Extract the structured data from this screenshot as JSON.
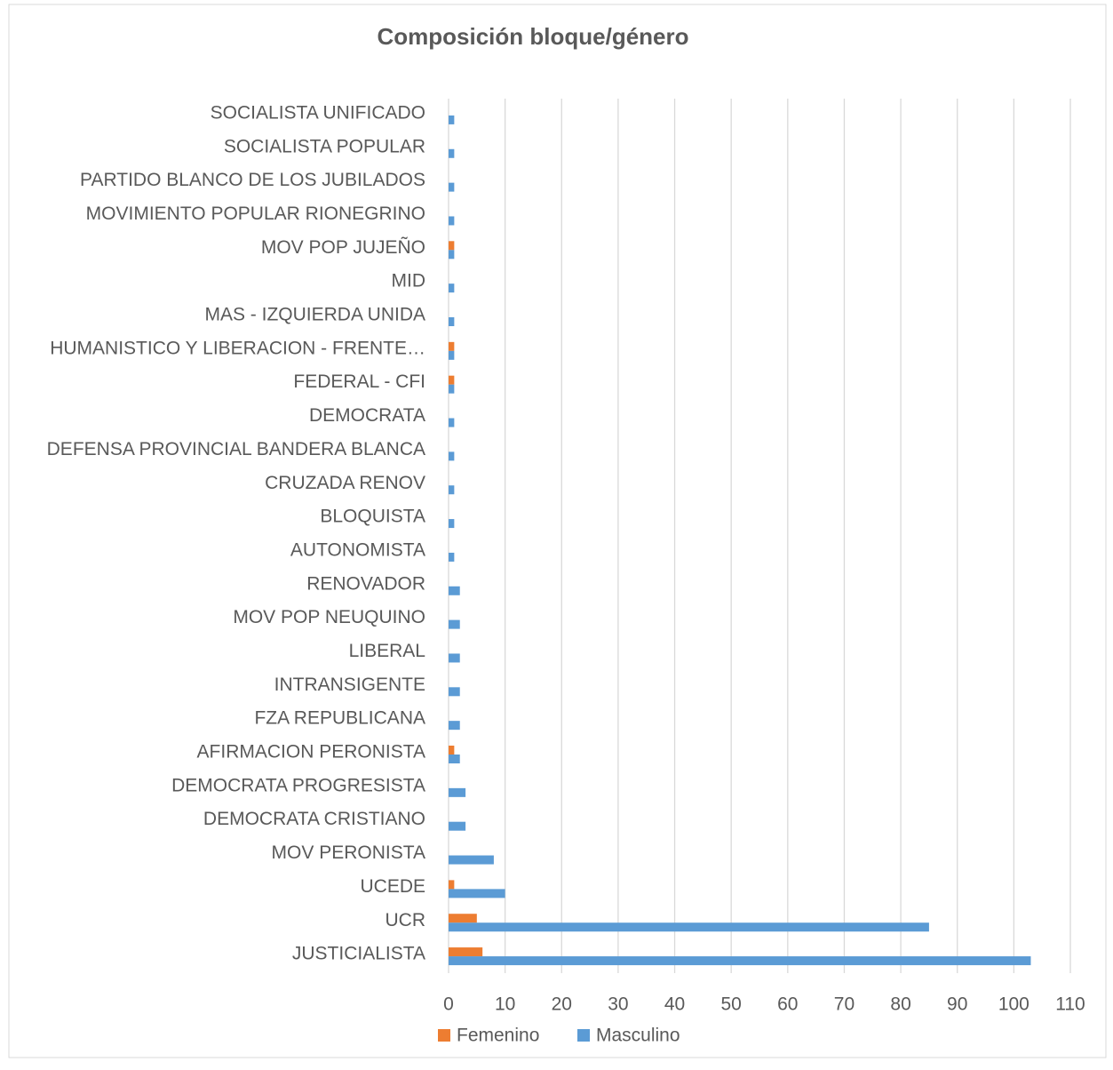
{
  "chart_data": {
    "type": "hbar",
    "title": "Composición bloque/género",
    "categories": [
      "SOCIALISTA UNIFICADO",
      "SOCIALISTA POPULAR",
      "PARTIDO BLANCO DE LOS JUBILADOS",
      "MOVIMIENTO POPULAR RIONEGRINO",
      "MOV POP JUJEÑO",
      "MID",
      "MAS - IZQUIERDA UNIDA",
      "HUMANISTICO Y LIBERACION - FRENTE…",
      "FEDERAL - CFI",
      "DEMOCRATA",
      "DEFENSA PROVINCIAL BANDERA BLANCA",
      "CRUZADA RENOV",
      "BLOQUISTA",
      "AUTONOMISTA",
      "RENOVADOR",
      "MOV POP NEUQUINO",
      "LIBERAL",
      "INTRANSIGENTE",
      "FZA REPUBLICANA",
      "AFIRMACION PERONISTA",
      "DEMOCRATA PROGRESISTA",
      "DEMOCRATA CRISTIANO",
      "MOV PERONISTA",
      "UCEDE",
      "UCR",
      "JUSTICIALISTA"
    ],
    "series": [
      {
        "name": "Femenino",
        "color": "#ed7d31",
        "values": [
          0,
          0,
          0,
          0,
          1,
          0,
          0,
          1,
          1,
          0,
          0,
          0,
          0,
          0,
          0,
          0,
          0,
          0,
          0,
          1,
          0,
          0,
          0,
          1,
          5,
          6
        ]
      },
      {
        "name": "Masculino",
        "color": "#5b9bd5",
        "values": [
          1,
          1,
          1,
          1,
          1,
          1,
          1,
          1,
          1,
          1,
          1,
          1,
          1,
          1,
          2,
          2,
          2,
          2,
          2,
          2,
          3,
          3,
          8,
          10,
          85,
          103
        ]
      }
    ],
    "xlim": [
      0,
      110
    ],
    "xticks": [
      0,
      10,
      20,
      30,
      40,
      50,
      60,
      70,
      80,
      90,
      100,
      110
    ],
    "grid": true,
    "legend": "bottom"
  }
}
